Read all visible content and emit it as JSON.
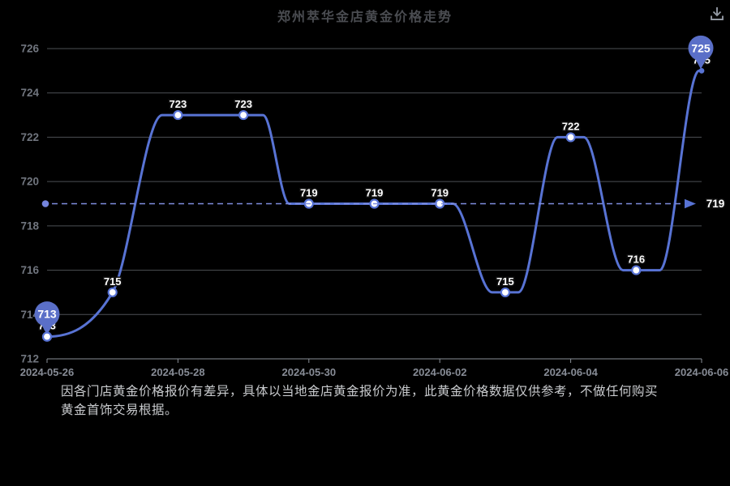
{
  "header": {
    "title": "郑州萃华金店黄金价格走势",
    "icons": {
      "download": "download-icon"
    }
  },
  "chart_data": {
    "type": "line",
    "title": "郑州萃华金店黄金价格走势",
    "x_tick_labels": [
      "2024-05-26",
      "2024-05-28",
      "2024-05-30",
      "2024-06-02",
      "2024-06-04",
      "2024-06-06"
    ],
    "x_tick_indices": [
      0,
      2,
      4,
      6,
      8,
      10
    ],
    "values": [
      713,
      715,
      723,
      723,
      719,
      719,
      719,
      715,
      722,
      716,
      725
    ],
    "point_labels": [
      "713",
      "715",
      "723",
      "723",
      "719",
      "719",
      "719",
      "715",
      "722",
      "716",
      "725"
    ],
    "y_ticks": [
      712,
      714,
      716,
      718,
      720,
      722,
      724,
      726
    ],
    "ylim": [
      712,
      726
    ],
    "grid": true,
    "legend": null,
    "reference_line": {
      "value": 719,
      "label": "719",
      "style": "dashed"
    },
    "balloon_markers": [
      {
        "index": 0,
        "label": "713"
      },
      {
        "index": 10,
        "label": "725"
      }
    ],
    "colors": {
      "background": "#000000",
      "line": "#5873d4",
      "marker_fill": "#ffffff",
      "balloon": "#5a6fc8",
      "reference_line": "#7e8dde",
      "reference_dot": "#7585dd",
      "grid_line": "#9aa0aa",
      "axis_line": "#8a9098",
      "y_tick_label": "#70757e",
      "x_tick_label": "#878c96",
      "point_label": "#ffffff",
      "title": "#4a4c51",
      "footer": "#c9cbce"
    }
  },
  "footer": {
    "disclaimer": "因各门店黄金价格报价有差异，具体以当地金店黄金报价为准，此黄金价格数据仅供参考，不做任何购买黄金首饰交易根据。"
  }
}
